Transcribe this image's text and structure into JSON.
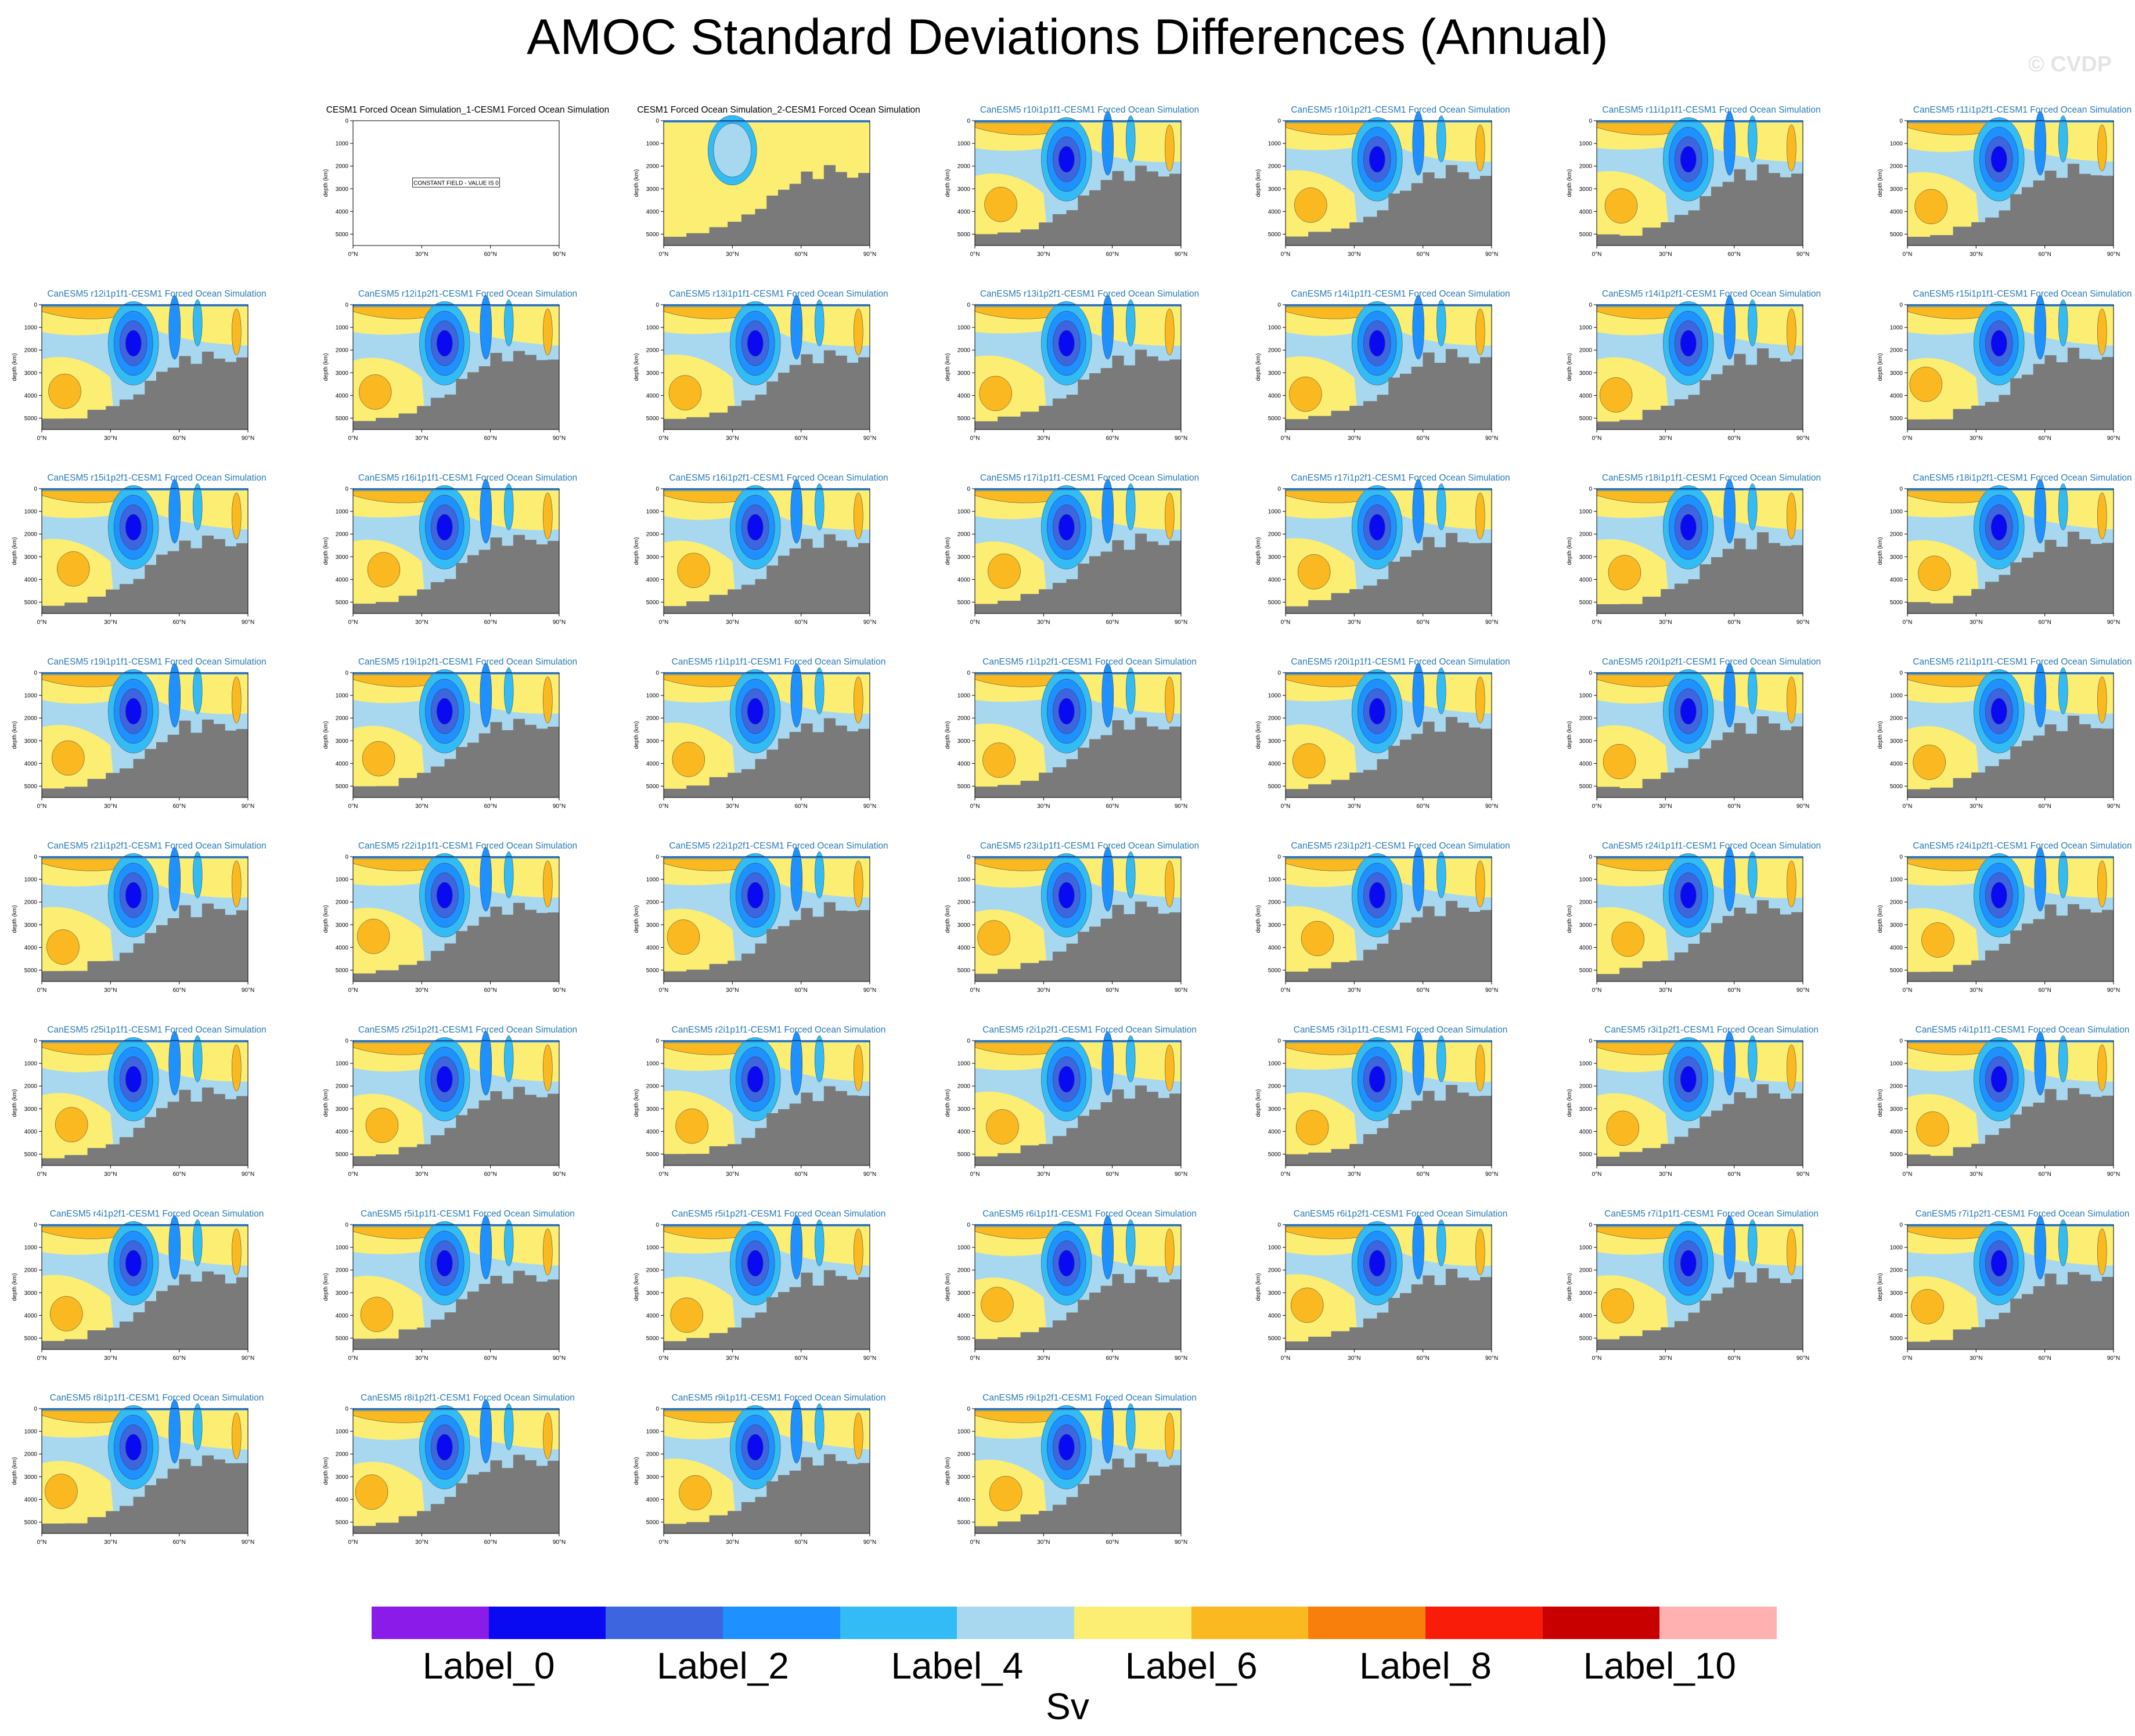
{
  "title": "AMOC Standard Deviations Differences (Annual)",
  "watermark": "© CVDP",
  "chart_data": {
    "type": "heatmap",
    "title": "AMOC Standard Deviations Differences (Annual)",
    "xlabel": "",
    "ylabel": "depth (km)",
    "x_ticks": [
      "0°N",
      "30°N",
      "60°N",
      "90°N"
    ],
    "y_ticks": [
      "0",
      "1000",
      "2000",
      "3000",
      "4000",
      "5000"
    ],
    "xlim": [
      0,
      90
    ],
    "ylim": [
      5500,
      0
    ],
    "colorbar": {
      "units": "Sv",
      "labels": [
        "Label_0",
        "Label_2",
        "Label_4",
        "Label_6",
        "Label_8",
        "Label_10"
      ],
      "colors": [
        "#8a1be8",
        "#0a0af2",
        "#3d65e0",
        "#1e90ff",
        "#33bbf5",
        "#a8d8f0",
        "#fbee73",
        "#fab921",
        "#f87f0c",
        "#f91d09",
        "#c80000",
        "#ffb0b0"
      ]
    },
    "panels": [
      {
        "title": "CESM1 Forced Ocean Simulation_1-CESM1 Forced Ocean Simulation",
        "constant": true,
        "constant_label": "CONSTANT FIELD - VALUE IS 0"
      },
      {
        "title": "CESM1 Forced Ocean Simulation_2-CESM1 Forced Ocean Simulation",
        "variant": "weak"
      },
      {
        "title": "CanESM5 r10i1p1f1-CESM1 Forced Ocean Simulation"
      },
      {
        "title": "CanESM5 r10i1p2f1-CESM1 Forced Ocean Simulation"
      },
      {
        "title": "CanESM5 r11i1p1f1-CESM1 Forced Ocean Simulation"
      },
      {
        "title": "CanESM5 r11i1p2f1-CESM1 Forced Ocean Simulation"
      },
      {
        "title": "CanESM5 r12i1p1f1-CESM1 Forced Ocean Simulation"
      },
      {
        "title": "CanESM5 r12i1p2f1-CESM1 Forced Ocean Simulation"
      },
      {
        "title": "CanESM5 r13i1p1f1-CESM1 Forced Ocean Simulation"
      },
      {
        "title": "CanESM5 r13i1p2f1-CESM1 Forced Ocean Simulation"
      },
      {
        "title": "CanESM5 r14i1p1f1-CESM1 Forced Ocean Simulation"
      },
      {
        "title": "CanESM5 r14i1p2f1-CESM1 Forced Ocean Simulation"
      },
      {
        "title": "CanESM5 r15i1p1f1-CESM1 Forced Ocean Simulation"
      },
      {
        "title": "CanESM5 r15i1p2f1-CESM1 Forced Ocean Simulation"
      },
      {
        "title": "CanESM5 r16i1p1f1-CESM1 Forced Ocean Simulation"
      },
      {
        "title": "CanESM5 r16i1p2f1-CESM1 Forced Ocean Simulation"
      },
      {
        "title": "CanESM5 r17i1p1f1-CESM1 Forced Ocean Simulation"
      },
      {
        "title": "CanESM5 r17i1p2f1-CESM1 Forced Ocean Simulation"
      },
      {
        "title": "CanESM5 r18i1p1f1-CESM1 Forced Ocean Simulation"
      },
      {
        "title": "CanESM5 r18i1p2f1-CESM1 Forced Ocean Simulation"
      },
      {
        "title": "CanESM5 r19i1p1f1-CESM1 Forced Ocean Simulation"
      },
      {
        "title": "CanESM5 r19i1p2f1-CESM1 Forced Ocean Simulation"
      },
      {
        "title": "CanESM5 r1i1p1f1-CESM1 Forced Ocean Simulation"
      },
      {
        "title": "CanESM5 r1i1p2f1-CESM1 Forced Ocean Simulation"
      },
      {
        "title": "CanESM5 r20i1p1f1-CESM1 Forced Ocean Simulation"
      },
      {
        "title": "CanESM5 r20i1p2f1-CESM1 Forced Ocean Simulation"
      },
      {
        "title": "CanESM5 r21i1p1f1-CESM1 Forced Ocean Simulation"
      },
      {
        "title": "CanESM5 r21i1p2f1-CESM1 Forced Ocean Simulation"
      },
      {
        "title": "CanESM5 r22i1p1f1-CESM1 Forced Ocean Simulation"
      },
      {
        "title": "CanESM5 r22i1p2f1-CESM1 Forced Ocean Simulation"
      },
      {
        "title": "CanESM5 r23i1p1f1-CESM1 Forced Ocean Simulation"
      },
      {
        "title": "CanESM5 r23i1p2f1-CESM1 Forced Ocean Simulation"
      },
      {
        "title": "CanESM5 r24i1p1f1-CESM1 Forced Ocean Simulation"
      },
      {
        "title": "CanESM5 r24i1p2f1-CESM1 Forced Ocean Simulation"
      },
      {
        "title": "CanESM5 r25i1p1f1-CESM1 Forced Ocean Simulation"
      },
      {
        "title": "CanESM5 r25i1p2f1-CESM1 Forced Ocean Simulation"
      },
      {
        "title": "CanESM5 r2i1p1f1-CESM1 Forced Ocean Simulation"
      },
      {
        "title": "CanESM5 r2i1p2f1-CESM1 Forced Ocean Simulation"
      },
      {
        "title": "CanESM5 r3i1p1f1-CESM1 Forced Ocean Simulation"
      },
      {
        "title": "CanESM5 r3i1p2f1-CESM1 Forced Ocean Simulation"
      },
      {
        "title": "CanESM5 r4i1p1f1-CESM1 Forced Ocean Simulation"
      },
      {
        "title": "CanESM5 r4i1p2f1-CESM1 Forced Ocean Simulation"
      },
      {
        "title": "CanESM5 r5i1p1f1-CESM1 Forced Ocean Simulation"
      },
      {
        "title": "CanESM5 r5i1p2f1-CESM1 Forced Ocean Simulation"
      },
      {
        "title": "CanESM5 r6i1p1f1-CESM1 Forced Ocean Simulation"
      },
      {
        "title": "CanESM5 r6i1p2f1-CESM1 Forced Ocean Simulation"
      },
      {
        "title": "CanESM5 r7i1p1f1-CESM1 Forced Ocean Simulation"
      },
      {
        "title": "CanESM5 r7i1p2f1-CESM1 Forced Ocean Simulation"
      },
      {
        "title": "CanESM5 r8i1p1f1-CESM1 Forced Ocean Simulation"
      },
      {
        "title": "CanESM5 r8i1p2f1-CESM1 Forced Ocean Simulation"
      },
      {
        "title": "CanESM5 r9i1p1f1-CESM1 Forced Ocean Simulation"
      },
      {
        "title": "CanESM5 r9i1p2f1-CESM1 Forced Ocean Simulation"
      }
    ]
  }
}
